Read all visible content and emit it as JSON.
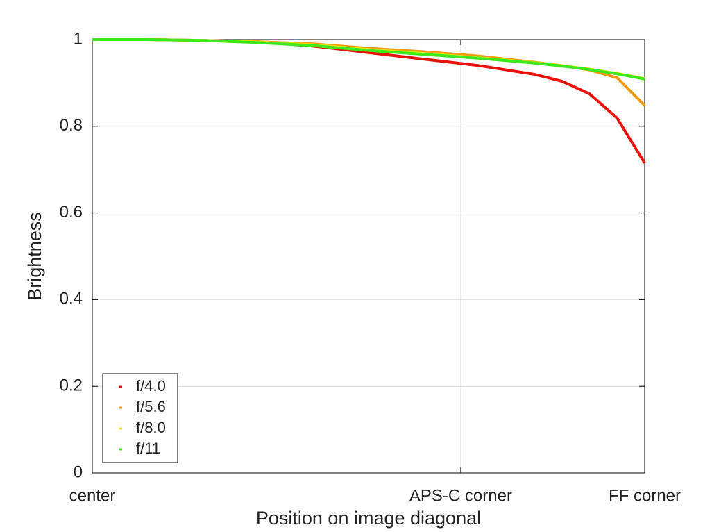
{
  "chart_data": {
    "type": "line",
    "xlabel": "Position on image diagonal",
    "ylabel": "Brightness",
    "x": [
      0,
      0.1,
      0.2,
      0.3,
      0.4,
      0.5,
      0.6,
      0.7,
      0.8,
      0.85,
      0.9,
      0.95,
      1
    ],
    "series": [
      {
        "name": "f/4.0",
        "color": "#e8120c",
        "values": [
          1.0,
          1.0,
          0.998,
          0.995,
          0.985,
          0.97,
          0.955,
          0.94,
          0.92,
          0.904,
          0.875,
          0.819,
          0.715
        ]
      },
      {
        "name": "f/5.6",
        "color": "#f09a0c",
        "values": [
          1.0,
          1.0,
          0.998,
          0.995,
          0.99,
          0.98,
          0.972,
          0.962,
          0.948,
          0.94,
          0.93,
          0.912,
          0.848
        ]
      },
      {
        "name": "f/8.0",
        "color": "#e4e40c",
        "values": [
          1.0,
          1.0,
          0.998,
          0.994,
          0.988,
          0.977,
          0.968,
          0.958,
          0.947,
          0.94,
          0.932,
          0.922,
          0.91
        ]
      },
      {
        "name": "f/11",
        "color": "#3ee81c",
        "values": [
          1.0,
          1.0,
          0.998,
          0.993,
          0.986,
          0.975,
          0.966,
          0.957,
          0.946,
          0.939,
          0.931,
          0.921,
          0.909
        ]
      }
    ],
    "xlim": [
      0,
      1
    ],
    "xticks": [
      {
        "value": 0,
        "label": "center"
      },
      {
        "value": 0.667,
        "label": "APS-C corner"
      },
      {
        "value": 1,
        "label": "FF corner"
      }
    ],
    "ylim": [
      0,
      1
    ],
    "yticks": [
      0,
      0.2,
      0.4,
      0.6,
      0.8,
      1
    ],
    "grid": true,
    "legend": "lower left"
  }
}
